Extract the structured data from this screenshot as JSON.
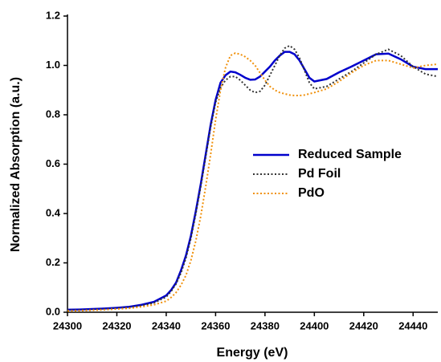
{
  "chart_data": {
    "type": "line",
    "x_label": "Energy (eV)",
    "y_label": "Normalized Absorption (a.u.)",
    "x": [
      24300,
      24305,
      24310,
      24315,
      24320,
      24325,
      24330,
      24335,
      24340,
      24342,
      24344,
      24346,
      24348,
      24350,
      24352,
      24354,
      24356,
      24358,
      24360,
      24362,
      24364,
      24366,
      24368,
      24370,
      24372,
      24374,
      24376,
      24378,
      24380,
      24382,
      24384,
      24386,
      24388,
      24390,
      24392,
      24394,
      24396,
      24398,
      24400,
      24405,
      24410,
      24415,
      24420,
      24425,
      24430,
      24435,
      24440,
      24445,
      24450
    ],
    "series": [
      {
        "name": "Reduced Sample",
        "color": "#0000cc",
        "dash": "solid",
        "values": [
          0.01,
          0.011,
          0.013,
          0.015,
          0.018,
          0.022,
          0.03,
          0.042,
          0.068,
          0.09,
          0.12,
          0.17,
          0.23,
          0.31,
          0.41,
          0.52,
          0.64,
          0.76,
          0.86,
          0.93,
          0.96,
          0.975,
          0.972,
          0.962,
          0.95,
          0.942,
          0.943,
          0.955,
          0.975,
          0.995,
          1.02,
          1.04,
          1.055,
          1.055,
          1.045,
          1.02,
          0.985,
          0.95,
          0.935,
          0.945,
          0.972,
          0.995,
          1.02,
          1.045,
          1.048,
          1.025,
          0.995,
          0.985,
          0.985
        ]
      },
      {
        "name": "Pd Foil",
        "color": "#333333",
        "dash": "dotted",
        "values": [
          0.008,
          0.009,
          0.011,
          0.013,
          0.016,
          0.02,
          0.027,
          0.038,
          0.062,
          0.085,
          0.115,
          0.16,
          0.22,
          0.3,
          0.4,
          0.51,
          0.63,
          0.75,
          0.85,
          0.91,
          0.94,
          0.955,
          0.955,
          0.94,
          0.92,
          0.9,
          0.89,
          0.895,
          0.92,
          0.96,
          1.0,
          1.04,
          1.07,
          1.08,
          1.065,
          1.03,
          0.98,
          0.93,
          0.905,
          0.915,
          0.945,
          0.975,
          1.01,
          1.045,
          1.065,
          1.04,
          0.995,
          0.965,
          0.955
        ]
      },
      {
        "name": "PdO",
        "color": "#f0900a",
        "dash": "dotted",
        "values": [
          0.005,
          0.006,
          0.008,
          0.01,
          0.013,
          0.016,
          0.022,
          0.03,
          0.045,
          0.06,
          0.08,
          0.11,
          0.15,
          0.21,
          0.29,
          0.39,
          0.51,
          0.64,
          0.78,
          0.9,
          0.99,
          1.04,
          1.05,
          1.045,
          1.035,
          1.02,
          1.0,
          0.97,
          0.94,
          0.915,
          0.9,
          0.89,
          0.885,
          0.88,
          0.878,
          0.878,
          0.88,
          0.885,
          0.89,
          0.905,
          0.935,
          0.97,
          1.0,
          1.02,
          1.02,
          1.005,
          0.99,
          1.0,
          1.005
        ]
      }
    ],
    "xlim": [
      24300,
      24450
    ],
    "xticks": [
      24300,
      24320,
      24340,
      24360,
      24380,
      24400,
      24420,
      24440
    ],
    "ylim": [
      0,
      1.2
    ],
    "yticks": [
      {
        "value": 0,
        "label": "0.0"
      },
      0.2,
      0.4,
      0.6,
      0.8,
      {
        "value": 1,
        "label": "1.0"
      },
      1.2
    ],
    "grid": false,
    "legend": "right"
  }
}
